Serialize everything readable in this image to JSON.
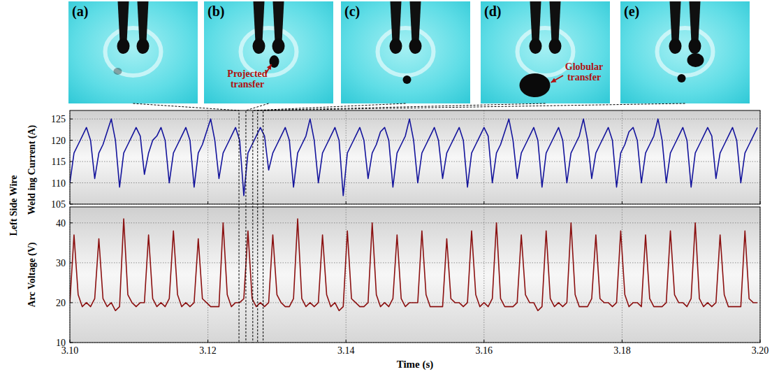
{
  "shared_ylabel": "Left Side Wire",
  "frames": [
    {
      "label": "(a)",
      "time": 3.1245
    },
    {
      "label": "(b)",
      "time": 3.1255,
      "annotation": "Projected transfer"
    },
    {
      "label": "(c)",
      "time": 3.1265
    },
    {
      "label": "(d)",
      "time": 3.1272,
      "annotation": "Globular transfer"
    },
    {
      "label": "(e)",
      "time": 3.128
    }
  ],
  "chart_data": [
    {
      "type": "line",
      "ylabel": "Weld ing Current (A)",
      "tick_labels": "y",
      "grid": true,
      "xlim": [
        3.1,
        3.2
      ],
      "xticks": [
        {
          "value": 3.1,
          "label": "3.10"
        },
        3.12,
        3.14,
        3.16,
        3.18,
        {
          "value": 3.2,
          "label": "3.20"
        }
      ],
      "ylim": [
        105,
        127
      ],
      "yticks": [
        105,
        110,
        115,
        120,
        125
      ],
      "x": [
        3.1,
        3.1006,
        3.1012,
        3.1018,
        3.1024,
        3.103,
        3.1036,
        3.1042,
        3.1048,
        3.1054,
        3.106,
        3.1066,
        3.1072,
        3.1078,
        3.1084,
        3.109,
        3.1096,
        3.1102,
        3.1108,
        3.1114,
        3.112,
        3.1126,
        3.1132,
        3.1138,
        3.1144,
        3.115,
        3.1156,
        3.1162,
        3.1168,
        3.1174,
        3.118,
        3.1186,
        3.1192,
        3.1198,
        3.1204,
        3.121,
        3.1216,
        3.1222,
        3.1228,
        3.1234,
        3.124,
        3.1246,
        3.1252,
        3.1258,
        3.1264,
        3.127,
        3.1276,
        3.1282,
        3.1288,
        3.1294,
        3.13,
        3.1306,
        3.1312,
        3.1318,
        3.1324,
        3.133,
        3.1336,
        3.1342,
        3.1348,
        3.1354,
        3.136,
        3.1366,
        3.1372,
        3.1378,
        3.1384,
        3.139,
        3.1396,
        3.1402,
        3.1408,
        3.1414,
        3.142,
        3.1426,
        3.1432,
        3.1438,
        3.1444,
        3.145,
        3.1456,
        3.1462,
        3.1468,
        3.1474,
        3.148,
        3.1486,
        3.1492,
        3.1498,
        3.1504,
        3.151,
        3.1516,
        3.1522,
        3.1528,
        3.1534,
        3.154,
        3.1546,
        3.1552,
        3.1558,
        3.1564,
        3.157,
        3.1576,
        3.1582,
        3.1588,
        3.1594,
        3.16,
        3.1606,
        3.1612,
        3.1618,
        3.1624,
        3.163,
        3.1636,
        3.1642,
        3.1648,
        3.1654,
        3.166,
        3.1666,
        3.1672,
        3.1678,
        3.1684,
        3.169,
        3.1696,
        3.1702,
        3.1708,
        3.1714,
        3.172,
        3.1726,
        3.1732,
        3.1738,
        3.1744,
        3.175,
        3.1756,
        3.1762,
        3.1768,
        3.1774,
        3.178,
        3.1786,
        3.1792,
        3.1798,
        3.1804,
        3.181,
        3.1816,
        3.1822,
        3.1828,
        3.1834,
        3.184,
        3.1846,
        3.1852,
        3.1858,
        3.1864,
        3.187,
        3.1876,
        3.1882,
        3.1888,
        3.1894,
        3.19,
        3.1906,
        3.1912,
        3.1918,
        3.1924,
        3.193,
        3.1936,
        3.1942,
        3.1948,
        3.1954,
        3.196,
        3.1966,
        3.1972,
        3.1978,
        3.1984,
        3.199,
        3.1996
      ],
      "series": [
        {
          "color": "#14149c",
          "values": [
            110,
            117,
            119,
            121,
            123,
            120,
            111,
            117,
            119,
            122,
            125,
            120,
            109,
            117,
            119,
            121,
            123,
            121,
            112,
            117,
            120,
            121,
            123,
            120,
            110,
            117,
            119,
            121,
            123,
            120,
            109,
            117,
            119,
            122,
            125,
            120,
            111,
            117,
            119,
            121,
            123,
            120,
            107,
            117,
            119,
            121,
            123,
            121,
            113,
            117,
            119,
            121,
            123,
            120,
            109,
            117,
            119,
            121,
            125,
            120,
            110,
            117,
            119,
            121,
            123,
            120,
            107,
            117,
            119,
            121,
            123,
            120,
            111,
            117,
            119,
            122,
            123,
            120,
            109,
            117,
            119,
            121,
            125,
            120,
            110,
            117,
            119,
            121,
            123,
            120,
            111,
            117,
            119,
            121,
            123,
            120,
            109,
            117,
            119,
            121,
            123,
            121,
            110,
            117,
            119,
            122,
            125,
            120,
            111,
            117,
            119,
            121,
            123,
            120,
            109,
            117,
            119,
            121,
            123,
            120,
            110,
            117,
            119,
            121,
            125,
            120,
            111,
            117,
            119,
            121,
            123,
            120,
            109,
            117,
            119,
            122,
            123,
            120,
            110,
            117,
            119,
            121,
            125,
            120,
            110,
            117,
            119,
            121,
            123,
            120,
            109,
            117,
            119,
            121,
            123,
            121,
            111,
            117,
            119,
            121,
            123,
            120,
            110,
            117,
            119,
            121,
            123
          ]
        }
      ]
    },
    {
      "type": "line",
      "ylabel": "Arc Voltage (V)",
      "xlabel": "Time (s)",
      "grid": true,
      "xlim": [
        3.1,
        3.2
      ],
      "xticks": [
        {
          "value": 3.1,
          "label": "3.10"
        },
        3.12,
        3.14,
        3.16,
        3.18,
        {
          "value": 3.2,
          "label": "3.20"
        }
      ],
      "ylim": [
        10,
        44
      ],
      "yticks": [
        10,
        20,
        30,
        40
      ],
      "x": [
        3.1,
        3.1006,
        3.1012,
        3.1018,
        3.1024,
        3.103,
        3.1036,
        3.1042,
        3.1048,
        3.1054,
        3.106,
        3.1066,
        3.1072,
        3.1078,
        3.1084,
        3.109,
        3.1096,
        3.1102,
        3.1108,
        3.1114,
        3.112,
        3.1126,
        3.1132,
        3.1138,
        3.1144,
        3.115,
        3.1156,
        3.1162,
        3.1168,
        3.1174,
        3.118,
        3.1186,
        3.1192,
        3.1198,
        3.1204,
        3.121,
        3.1216,
        3.1222,
        3.1228,
        3.1234,
        3.124,
        3.1246,
        3.1252,
        3.1258,
        3.1264,
        3.127,
        3.1276,
        3.1282,
        3.1288,
        3.1294,
        3.13,
        3.1306,
        3.1312,
        3.1318,
        3.1324,
        3.133,
        3.1336,
        3.1342,
        3.1348,
        3.1354,
        3.136,
        3.1366,
        3.1372,
        3.1378,
        3.1384,
        3.139,
        3.1396,
        3.1402,
        3.1408,
        3.1414,
        3.142,
        3.1426,
        3.1432,
        3.1438,
        3.1444,
        3.145,
        3.1456,
        3.1462,
        3.1468,
        3.1474,
        3.148,
        3.1486,
        3.1492,
        3.1498,
        3.1504,
        3.151,
        3.1516,
        3.1522,
        3.1528,
        3.1534,
        3.154,
        3.1546,
        3.1552,
        3.1558,
        3.1564,
        3.157,
        3.1576,
        3.1582,
        3.1588,
        3.1594,
        3.16,
        3.1606,
        3.1612,
        3.1618,
        3.1624,
        3.163,
        3.1636,
        3.1642,
        3.1648,
        3.1654,
        3.166,
        3.1666,
        3.1672,
        3.1678,
        3.1684,
        3.169,
        3.1696,
        3.1702,
        3.1708,
        3.1714,
        3.172,
        3.1726,
        3.1732,
        3.1738,
        3.1744,
        3.175,
        3.1756,
        3.1762,
        3.1768,
        3.1774,
        3.178,
        3.1786,
        3.1792,
        3.1798,
        3.1804,
        3.181,
        3.1816,
        3.1822,
        3.1828,
        3.1834,
        3.184,
        3.1846,
        3.1852,
        3.1858,
        3.1864,
        3.187,
        3.1876,
        3.1882,
        3.1888,
        3.1894,
        3.19,
        3.1906,
        3.1912,
        3.1918,
        3.1924,
        3.193,
        3.1936,
        3.1942,
        3.1948,
        3.1954,
        3.196,
        3.1966,
        3.1972,
        3.1978,
        3.1984,
        3.199,
        3.1996
      ],
      "series": [
        {
          "color": "#8b1010",
          "values": [
            20,
            37,
            22,
            19,
            20,
            19,
            21,
            36,
            21,
            19,
            20,
            18,
            19,
            41,
            22,
            20,
            19,
            20,
            20,
            37,
            21,
            19,
            20,
            19,
            21,
            38,
            22,
            19,
            20,
            19,
            20,
            36,
            21,
            20,
            19,
            19,
            19,
            40,
            22,
            19,
            20,
            20,
            21,
            38,
            21,
            19,
            20,
            19,
            20,
            37,
            22,
            20,
            19,
            19,
            21,
            41,
            21,
            19,
            20,
            19,
            20,
            37,
            22,
            19,
            20,
            18,
            19,
            38,
            21,
            20,
            19,
            19,
            20,
            40,
            22,
            19,
            20,
            19,
            21,
            37,
            21,
            19,
            20,
            20,
            20,
            38,
            22,
            19,
            19,
            19,
            19,
            36,
            21,
            20,
            20,
            19,
            20,
            38,
            22,
            19,
            20,
            19,
            21,
            40,
            21,
            19,
            19,
            19,
            20,
            37,
            22,
            20,
            20,
            18,
            19,
            38,
            21,
            19,
            20,
            19,
            20,
            40,
            22,
            19,
            19,
            19,
            21,
            37,
            21,
            20,
            20,
            19,
            20,
            38,
            22,
            19,
            20,
            20,
            19,
            37,
            21,
            19,
            19,
            19,
            20,
            38,
            22,
            20,
            20,
            19,
            21,
            40,
            21,
            19,
            20,
            19,
            20,
            37,
            22,
            19,
            19,
            19,
            19,
            38,
            21,
            20,
            20
          ]
        }
      ]
    }
  ]
}
